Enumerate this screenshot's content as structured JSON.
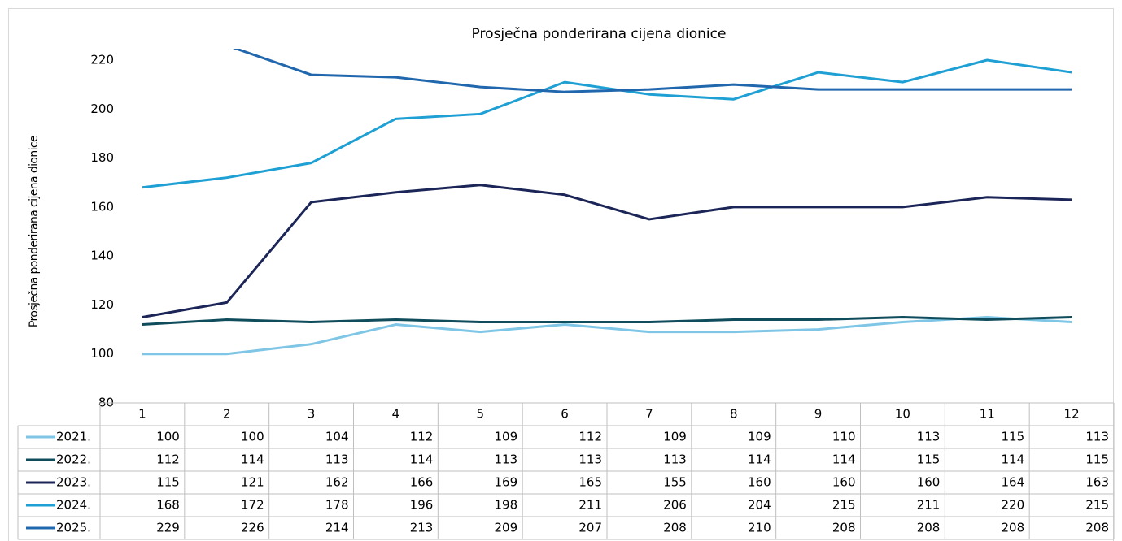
{
  "chart_data": {
    "type": "line",
    "title": "Prosječna ponderirana cijena dionice",
    "ylabel": "Prosječna ponderirana cijena dionice",
    "categories": [
      "1",
      "2",
      "3",
      "4",
      "5",
      "6",
      "7",
      "8",
      "9",
      "10",
      "11",
      "12"
    ],
    "ylim": [
      80,
      220
    ],
    "yticks": [
      80,
      100,
      120,
      140,
      160,
      180,
      200,
      220
    ],
    "grid": false,
    "series": [
      {
        "name": "2021.",
        "color": "#7fc6e6",
        "values": [
          100,
          100,
          104,
          112,
          109,
          112,
          109,
          109,
          110,
          113,
          115,
          113
        ]
      },
      {
        "name": "2022.",
        "color": "#0f4c5c",
        "values": [
          112,
          114,
          113,
          114,
          113,
          113,
          113,
          114,
          114,
          115,
          114,
          115
        ]
      },
      {
        "name": "2023.",
        "color": "#1c2557",
        "values": [
          115,
          121,
          162,
          166,
          169,
          165,
          155,
          160,
          160,
          160,
          164,
          163
        ]
      },
      {
        "name": "2024.",
        "color": "#1ea0d4",
        "values": [
          168,
          172,
          178,
          196,
          198,
          211,
          206,
          204,
          215,
          211,
          220,
          215
        ]
      },
      {
        "name": "2025.",
        "color": "#2167ad",
        "values": [
          229,
          226,
          214,
          213,
          209,
          207,
          208,
          210,
          208,
          208,
          208,
          208
        ]
      }
    ]
  }
}
